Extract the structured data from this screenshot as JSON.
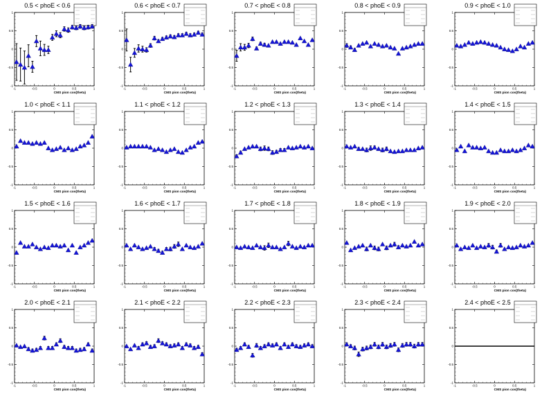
{
  "chart_data": {
    "type": "scatter",
    "xlabel": "CMS pion cos(theta)",
    "xticks": [
      "-1",
      "-0.5",
      "0",
      "0.5",
      "1"
    ],
    "yticks": [
      "-1",
      "-0.5",
      "0",
      "0.5",
      "1"
    ],
    "xlim": [
      -1,
      1
    ],
    "ylim": [
      -1,
      1
    ],
    "marker_color": "#1414d8",
    "panels": [
      {
        "title": "0.5 < phoE < 0.6",
        "y": [
          -0.35,
          -0.42,
          -0.5,
          -0.18,
          -0.48,
          0.22,
          0.02,
          -0.02,
          -0.02,
          0.32,
          0.42,
          0.38,
          0.55,
          0.52,
          0.6,
          0.58,
          0.62,
          0.58,
          0.6,
          0.62
        ],
        "err": [
          0.5,
          0.45,
          0.45,
          0.3,
          0.15,
          0.15,
          0.2,
          0.15,
          0.1,
          0.08,
          0.08,
          0.07,
          0.06,
          0.06,
          0.05,
          0.05,
          0.05,
          0.05,
          0.05,
          0.05
        ]
      },
      {
        "title": "0.6 < phoE < 0.7",
        "y": [
          0.25,
          -0.42,
          -0.1,
          0.02,
          0.0,
          -0.02,
          0.1,
          0.3,
          0.22,
          0.28,
          0.32,
          0.35,
          0.33,
          0.38,
          0.38,
          0.42,
          0.38,
          0.4,
          0.45,
          0.4
        ],
        "err": [
          0.3,
          0.2,
          0.12,
          0.1,
          0.08,
          0.06,
          0.05,
          0.05,
          0.04,
          0.04,
          0.04,
          0.04,
          0.04,
          0.04,
          0.04,
          0.04,
          0.04,
          0.04,
          0.04,
          0.04
        ]
      },
      {
        "title": "0.7 < phoE < 0.8",
        "y": [
          -0.18,
          0.05,
          0.05,
          0.1,
          0.28,
          0.02,
          0.15,
          0.12,
          0.1,
          0.2,
          0.2,
          0.15,
          0.2,
          0.2,
          0.18,
          0.12,
          0.3,
          0.22,
          0.12,
          0.25
        ],
        "err": [
          0.15,
          0.1,
          0.08,
          0.06,
          0.05,
          0.04,
          0.04,
          0.04,
          0.03,
          0.03,
          0.03,
          0.03,
          0.03,
          0.03,
          0.03,
          0.03,
          0.03,
          0.03,
          0.03,
          0.03
        ]
      },
      {
        "title": "0.8 < phoE < 0.9",
        "y": [
          0.1,
          0.05,
          -0.02,
          0.1,
          0.15,
          0.18,
          0.08,
          0.15,
          0.12,
          0.08,
          0.1,
          0.05,
          0.02,
          -0.12,
          0.02,
          0.05,
          0.08,
          0.12,
          0.15,
          0.15
        ],
        "err": [
          0.05,
          0.04,
          0.04,
          0.03,
          0.03,
          0.03,
          0.03,
          0.03,
          0.03,
          0.03,
          0.03,
          0.03,
          0.03,
          0.03,
          0.03,
          0.03,
          0.03,
          0.03,
          0.03,
          0.03
        ]
      },
      {
        "title": "0.9 < phoE < 1.0",
        "y": [
          0.1,
          0.08,
          0.12,
          0.18,
          0.15,
          0.18,
          0.2,
          0.18,
          0.15,
          0.12,
          0.1,
          0.05,
          0.0,
          -0.02,
          -0.05,
          0.0,
          0.08,
          0.05,
          0.15,
          0.18
        ],
        "err": [
          0.03,
          0.03,
          0.03,
          0.03,
          0.03,
          0.03,
          0.03,
          0.03,
          0.03,
          0.03,
          0.03,
          0.03,
          0.03,
          0.03,
          0.03,
          0.03,
          0.03,
          0.03,
          0.03,
          0.03
        ]
      },
      {
        "title": "1.0 < phoE < 1.1",
        "y": [
          0.05,
          0.2,
          0.15,
          0.15,
          0.12,
          0.15,
          0.12,
          0.15,
          0.0,
          -0.05,
          -0.02,
          0.02,
          -0.05,
          0.0,
          -0.05,
          -0.02,
          0.05,
          0.08,
          0.15,
          0.32
        ],
        "err": [
          0.03,
          0.03,
          0.03,
          0.03,
          0.03,
          0.03,
          0.03,
          0.03,
          0.03,
          0.03,
          0.03,
          0.03,
          0.03,
          0.03,
          0.03,
          0.03,
          0.03,
          0.03,
          0.03,
          0.03
        ]
      },
      {
        "title": "1.1 < phoE < 1.2",
        "y": [
          0.02,
          0.05,
          0.05,
          0.05,
          0.05,
          0.05,
          0.02,
          -0.05,
          -0.02,
          -0.05,
          -0.1,
          -0.05,
          -0.02,
          -0.1,
          -0.12,
          -0.05,
          0.02,
          0.05,
          0.15,
          0.18
        ],
        "err": [
          0.03,
          0.03,
          0.03,
          0.03,
          0.03,
          0.03,
          0.03,
          0.03,
          0.03,
          0.03,
          0.03,
          0.03,
          0.03,
          0.03,
          0.03,
          0.03,
          0.03,
          0.03,
          0.03,
          0.03
        ]
      },
      {
        "title": "1.2 < phoE < 1.3",
        "y": [
          -0.22,
          -0.12,
          -0.02,
          0.02,
          0.05,
          0.05,
          -0.02,
          0.0,
          -0.02,
          -0.12,
          -0.1,
          -0.05,
          -0.05,
          0.02,
          0.0,
          0.02,
          0.05,
          0.02,
          0.05,
          0.0
        ],
        "err": [
          0.04,
          0.04,
          0.03,
          0.03,
          0.03,
          0.03,
          0.05,
          0.06,
          0.05,
          0.05,
          0.04,
          0.04,
          0.04,
          0.03,
          0.03,
          0.03,
          0.03,
          0.03,
          0.03,
          0.03
        ]
      },
      {
        "title": "1.3 < phoE < 1.4",
        "y": [
          0.05,
          0.02,
          0.05,
          -0.02,
          -0.02,
          -0.05,
          0.0,
          0.02,
          -0.02,
          -0.05,
          -0.02,
          -0.08,
          -0.1,
          -0.08,
          -0.08,
          -0.05,
          -0.05,
          -0.05,
          0.0,
          0.02
        ],
        "err": [
          0.03,
          0.03,
          0.03,
          0.04,
          0.03,
          0.05,
          0.06,
          0.04,
          0.03,
          0.05,
          0.05,
          0.03,
          0.03,
          0.03,
          0.03,
          0.03,
          0.03,
          0.03,
          0.03,
          0.03
        ]
      },
      {
        "title": "1.4 < phoE < 1.5",
        "y": [
          -0.05,
          0.05,
          -0.08,
          0.08,
          0.02,
          0.02,
          0.0,
          0.02,
          -0.08,
          -0.12,
          -0.12,
          -0.05,
          -0.08,
          -0.08,
          -0.05,
          -0.08,
          -0.05,
          0.0,
          0.08,
          0.05
        ],
        "err": [
          0.03,
          0.03,
          0.03,
          0.03,
          0.03,
          0.03,
          0.03,
          0.03,
          0.03,
          0.03,
          0.03,
          0.03,
          0.03,
          0.03,
          0.03,
          0.03,
          0.03,
          0.03,
          0.03,
          0.03
        ]
      },
      {
        "title": "1.5 < phoE < 1.6",
        "y": [
          -0.15,
          0.12,
          0.02,
          0.02,
          0.08,
          0.0,
          -0.05,
          0.0,
          -0.02,
          0.05,
          0.05,
          0.02,
          0.05,
          -0.08,
          0.05,
          -0.15,
          0.0,
          0.05,
          0.12,
          0.18
        ],
        "err": [
          0.03,
          0.03,
          0.03,
          0.03,
          0.03,
          0.03,
          0.03,
          0.03,
          0.03,
          0.03,
          0.03,
          0.03,
          0.03,
          0.03,
          0.03,
          0.03,
          0.03,
          0.03,
          0.03,
          0.03
        ]
      },
      {
        "title": "1.6 < phoE < 1.7",
        "y": [
          0.05,
          -0.05,
          0.05,
          0.0,
          -0.05,
          -0.02,
          0.02,
          -0.05,
          -0.1,
          -0.15,
          -0.05,
          -0.05,
          0.02,
          0.08,
          -0.05,
          0.05,
          0.0,
          -0.02,
          0.02,
          0.1
        ],
        "err": [
          0.03,
          0.03,
          0.03,
          0.03,
          0.03,
          0.03,
          0.03,
          0.04,
          0.04,
          0.04,
          0.04,
          0.05,
          0.05,
          0.06,
          0.03,
          0.03,
          0.03,
          0.03,
          0.03,
          0.03
        ]
      },
      {
        "title": "1.7 < phoE < 1.8",
        "y": [
          0.0,
          -0.02,
          0.02,
          0.0,
          -0.02,
          0.05,
          0.0,
          -0.02,
          0.05,
          0.0,
          0.0,
          -0.05,
          0.0,
          0.1,
          0.02,
          -0.02,
          0.02,
          0.0,
          0.05,
          0.05
        ],
        "err": [
          0.03,
          0.03,
          0.03,
          0.03,
          0.03,
          0.03,
          0.03,
          0.06,
          0.06,
          0.03,
          0.03,
          0.03,
          0.03,
          0.06,
          0.03,
          0.03,
          0.03,
          0.03,
          0.03,
          0.03
        ]
      },
      {
        "title": "1.8 < phoE < 1.9",
        "y": [
          0.12,
          -0.08,
          -0.02,
          0.02,
          0.05,
          -0.05,
          0.05,
          -0.02,
          -0.05,
          0.08,
          -0.02,
          0.05,
          0.08,
          0.0,
          0.05,
          0.02,
          0.05,
          0.15,
          0.05,
          0.08
        ],
        "err": [
          0.03,
          0.03,
          0.03,
          0.03,
          0.03,
          0.05,
          0.03,
          0.05,
          0.05,
          0.03,
          0.05,
          0.03,
          0.05,
          0.04,
          0.03,
          0.03,
          0.03,
          0.03,
          0.03,
          0.03
        ]
      },
      {
        "title": "1.9 < phoE < 2.0",
        "y": [
          0.05,
          -0.05,
          0.0,
          -0.02,
          0.05,
          -0.02,
          0.02,
          0.0,
          0.05,
          0.0,
          -0.12,
          0.05,
          -0.05,
          0.0,
          -0.02,
          0.0,
          0.05,
          0.02,
          0.05,
          0.12
        ],
        "err": [
          0.03,
          0.03,
          0.03,
          0.03,
          0.03,
          0.03,
          0.03,
          0.03,
          0.05,
          0.05,
          0.04,
          0.05,
          0.03,
          0.03,
          0.03,
          0.03,
          0.03,
          0.03,
          0.03,
          0.03
        ]
      },
      {
        "title": "2.0 < phoE < 2.1",
        "y": [
          0.02,
          -0.02,
          0.0,
          -0.08,
          -0.12,
          -0.1,
          -0.05,
          0.22,
          -0.05,
          -0.05,
          0.05,
          0.15,
          -0.02,
          -0.05,
          -0.05,
          -0.12,
          -0.1,
          -0.08,
          0.05,
          -0.12
        ],
        "err": [
          0.03,
          0.03,
          0.03,
          0.04,
          0.04,
          0.04,
          0.04,
          0.05,
          0.04,
          0.04,
          0.04,
          0.05,
          0.04,
          0.04,
          0.04,
          0.04,
          0.04,
          0.04,
          0.04,
          0.04
        ]
      },
      {
        "title": "2.1 < phoE < 2.2",
        "y": [
          0.0,
          -0.08,
          0.02,
          -0.05,
          0.05,
          0.08,
          -0.02,
          0.0,
          0.15,
          0.08,
          0.05,
          0.0,
          0.02,
          0.05,
          -0.05,
          0.05,
          0.02,
          -0.05,
          -0.02,
          -0.22
        ],
        "err": [
          0.03,
          0.03,
          0.03,
          0.04,
          0.04,
          0.04,
          0.04,
          0.04,
          0.05,
          0.04,
          0.04,
          0.04,
          0.04,
          0.04,
          0.04,
          0.04,
          0.04,
          0.04,
          0.04,
          0.04
        ]
      },
      {
        "title": "2.2 < phoE < 2.3",
        "y": [
          -0.1,
          -0.05,
          0.05,
          -0.02,
          -0.25,
          0.02,
          -0.05,
          0.0,
          0.05,
          0.02,
          0.05,
          -0.05,
          0.05,
          -0.02,
          0.05,
          0.0,
          -0.02,
          0.02,
          0.05,
          0.0
        ],
        "err": [
          0.04,
          0.04,
          0.04,
          0.04,
          0.05,
          0.05,
          0.04,
          0.04,
          0.04,
          0.04,
          0.04,
          0.04,
          0.04,
          0.04,
          0.04,
          0.04,
          0.04,
          0.04,
          0.04,
          0.04
        ]
      },
      {
        "title": "2.3 < phoE < 2.4",
        "y": [
          0.05,
          0.0,
          -0.05,
          -0.22,
          -0.08,
          -0.05,
          -0.02,
          0.05,
          -0.02,
          0.05,
          -0.02,
          0.02,
          0.05,
          -0.1,
          0.02,
          0.05,
          0.05,
          0.0,
          0.05,
          0.05
        ],
        "err": [
          0.04,
          0.04,
          0.05,
          0.06,
          0.05,
          0.05,
          0.05,
          0.05,
          0.05,
          0.05,
          0.05,
          0.05,
          0.05,
          0.05,
          0.05,
          0.05,
          0.05,
          0.05,
          0.05,
          0.05
        ]
      },
      {
        "title": "2.4 < phoE < 2.5",
        "y": [],
        "err": [],
        "flat_line": 0
      }
    ]
  }
}
